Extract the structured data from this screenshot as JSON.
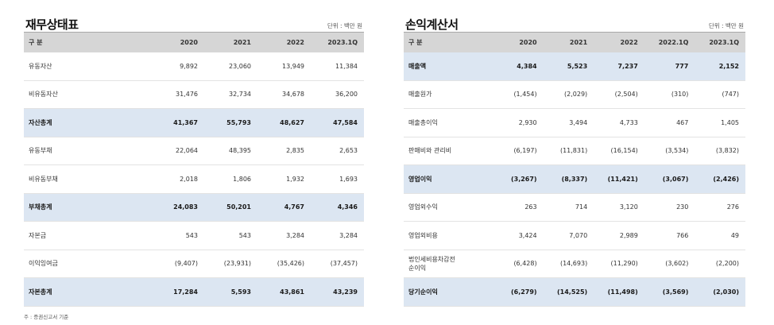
{
  "balance_sheet": {
    "title": "재무상태표",
    "unit": "단위 : 백만 원",
    "headers": [
      "구 분",
      "2020",
      "2021",
      "2022",
      "2023.1Q"
    ],
    "rows": [
      {
        "label": "유동자산",
        "values": [
          "9,892",
          "23,060",
          "13,949",
          "11,384"
        ],
        "highlight": false
      },
      {
        "label": "비유동자산",
        "values": [
          "31,476",
          "32,734",
          "34,678",
          "36,200"
        ],
        "highlight": false
      },
      {
        "label": "자산총계",
        "values": [
          "41,367",
          "55,793",
          "48,627",
          "47,584"
        ],
        "highlight": true
      },
      {
        "label": "유동부채",
        "values": [
          "22,064",
          "48,395",
          "2,835",
          "2,653"
        ],
        "highlight": false
      },
      {
        "label": "비유동부채",
        "values": [
          "2,018",
          "1,806",
          "1,932",
          "1,693"
        ],
        "highlight": false
      },
      {
        "label": "부채총계",
        "values": [
          "24,083",
          "50,201",
          "4,767",
          "4,346"
        ],
        "highlight": true
      },
      {
        "label": "자본금",
        "values": [
          "543",
          "543",
          "3,284",
          "3,284"
        ],
        "highlight": false
      },
      {
        "label": "이익잉여금",
        "values": [
          "(9,407)",
          "(23,931)",
          "(35,426)",
          "(37,457)"
        ],
        "highlight": false
      },
      {
        "label": "자본총계",
        "values": [
          "17,284",
          "5,593",
          "43,861",
          "43,239"
        ],
        "highlight": true
      }
    ]
  },
  "income_statement": {
    "title": "손익계산서",
    "unit": "단위 : 백만 원",
    "headers": [
      "구 분",
      "2020",
      "2021",
      "2022",
      "2022.1Q",
      "2023.1Q"
    ],
    "rows": [
      {
        "label": "매출액",
        "values": [
          "4,384",
          "5,523",
          "7,237",
          "777",
          "2,152"
        ],
        "highlight": true
      },
      {
        "label": "매출원가",
        "values": [
          "(1,454)",
          "(2,029)",
          "(2,504)",
          "(310)",
          "(747)"
        ],
        "highlight": false
      },
      {
        "label": "매출총이익",
        "values": [
          "2,930",
          "3,494",
          "4,733",
          "467",
          "1,405"
        ],
        "highlight": false
      },
      {
        "label": "판매비와 관리비",
        "values": [
          "(6,197)",
          "(11,831)",
          "(16,154)",
          "(3,534)",
          "(3,832)"
        ],
        "highlight": false
      },
      {
        "label": "영업이익",
        "values": [
          "(3,267)",
          "(8,337)",
          "(11,421)",
          "(3,067)",
          "(2,426)"
        ],
        "highlight": true
      },
      {
        "label": "영업외수익",
        "values": [
          "263",
          "714",
          "3,120",
          "230",
          "276"
        ],
        "highlight": false
      },
      {
        "label": "영업외비용",
        "values": [
          "3,424",
          "7,070",
          "2,989",
          "766",
          "49"
        ],
        "highlight": false
      },
      {
        "label": "법인세비용차감전\n순이익",
        "values": [
          "(6,428)",
          "(14,693)",
          "(11,290)",
          "(3,602)",
          "(2,200)"
        ],
        "highlight": false
      },
      {
        "label": "당기순이익",
        "values": [
          "(6,279)",
          "(14,525)",
          "(11,498)",
          "(3,569)",
          "(2,030)"
        ],
        "highlight": true
      }
    ]
  },
  "footnote": "주 : 증권신고서 기준"
}
